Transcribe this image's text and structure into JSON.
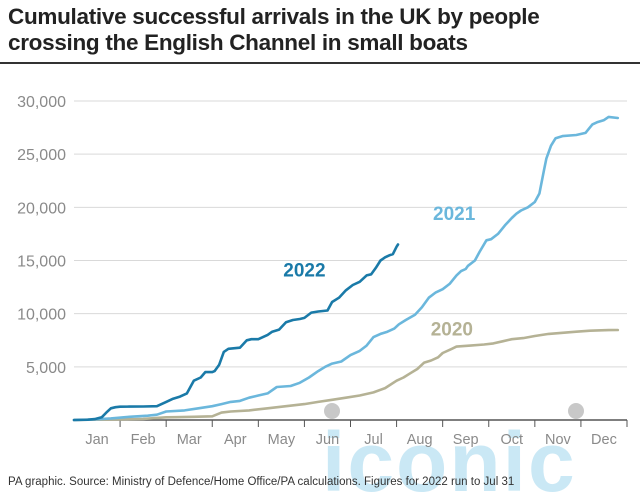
{
  "title": "Cumulative successful arrivals in the UK by people crossing the English Channel in small boats",
  "source": "PA graphic. Source: Ministry of Defence/Home Office/PA calculations. Figures for 2022 run to Jul 31",
  "watermark": "iconic",
  "colors": {
    "s2022": "#1a7aa8",
    "s2021": "#6bb7dc",
    "s2020": "#b5b295",
    "grid": "#d9d9d9",
    "axis": "#555555",
    "tick": "#8a8a8a",
    "watermark": "#9fd6ee"
  },
  "chart_data": {
    "type": "line",
    "title": "Cumulative successful arrivals in the UK by people crossing the English Channel in small boats",
    "xlabel": "",
    "ylabel": "",
    "xlim": [
      0,
      12
    ],
    "ylim": [
      0,
      30000
    ],
    "yticks": [
      0,
      5000,
      10000,
      15000,
      20000,
      25000,
      30000
    ],
    "ytick_labels": [
      "",
      "5,000",
      "10,000",
      "15,000",
      "20,000",
      "25,000",
      "30,000"
    ],
    "xtick_labels": [
      "Jan",
      "Feb",
      "Mar",
      "Apr",
      "May",
      "Jun",
      "Jul",
      "Aug",
      "Sep",
      "Oct",
      "Nov",
      "Dec"
    ],
    "x_units": "months from Jan 1",
    "grid": true,
    "series": [
      {
        "name": "2022",
        "color": "#1a7aa8",
        "label_at": [
          5.0,
          13500
        ],
        "points": [
          [
            0,
            0
          ],
          [
            0.3,
            30
          ],
          [
            0.45,
            80
          ],
          [
            0.6,
            250
          ],
          [
            0.7,
            700
          ],
          [
            0.8,
            1100
          ],
          [
            0.9,
            1200
          ],
          [
            1.0,
            1250
          ],
          [
            1.2,
            1260
          ],
          [
            1.5,
            1270
          ],
          [
            1.8,
            1300
          ],
          [
            2.0,
            1700
          ],
          [
            2.15,
            2000
          ],
          [
            2.3,
            2200
          ],
          [
            2.45,
            2500
          ],
          [
            2.6,
            3700
          ],
          [
            2.75,
            4000
          ],
          [
            2.85,
            4500
          ],
          [
            3.0,
            4500
          ],
          [
            3.05,
            4600
          ],
          [
            3.15,
            5200
          ],
          [
            3.25,
            6400
          ],
          [
            3.35,
            6700
          ],
          [
            3.6,
            6800
          ],
          [
            3.75,
            7500
          ],
          [
            3.85,
            7600
          ],
          [
            4.0,
            7600
          ],
          [
            4.2,
            8000
          ],
          [
            4.3,
            8300
          ],
          [
            4.45,
            8500
          ],
          [
            4.6,
            9200
          ],
          [
            4.75,
            9400
          ],
          [
            4.9,
            9500
          ],
          [
            5.0,
            9600
          ],
          [
            5.15,
            10100
          ],
          [
            5.3,
            10200
          ],
          [
            5.5,
            10300
          ],
          [
            5.6,
            11100
          ],
          [
            5.75,
            11500
          ],
          [
            5.9,
            12200
          ],
          [
            6.05,
            12700
          ],
          [
            6.2,
            13000
          ],
          [
            6.35,
            13600
          ],
          [
            6.45,
            13700
          ],
          [
            6.55,
            14300
          ],
          [
            6.65,
            15000
          ],
          [
            6.75,
            15300
          ],
          [
            6.85,
            15500
          ],
          [
            6.92,
            15600
          ],
          [
            7.0,
            16300
          ],
          [
            7.03,
            16500
          ]
        ]
      },
      {
        "name": "2021",
        "color": "#6bb7dc",
        "label_at": [
          8.25,
          18800
        ],
        "points": [
          [
            0,
            0
          ],
          [
            0.4,
            50
          ],
          [
            0.8,
            150
          ],
          [
            1.2,
            300
          ],
          [
            1.6,
            400
          ],
          [
            1.8,
            500
          ],
          [
            2.0,
            800
          ],
          [
            2.4,
            900
          ],
          [
            2.7,
            1100
          ],
          [
            3.0,
            1300
          ],
          [
            3.2,
            1500
          ],
          [
            3.4,
            1700
          ],
          [
            3.6,
            1800
          ],
          [
            3.8,
            2100
          ],
          [
            4.0,
            2300
          ],
          [
            4.2,
            2500
          ],
          [
            4.4,
            3100
          ],
          [
            4.7,
            3200
          ],
          [
            4.9,
            3500
          ],
          [
            5.1,
            4000
          ],
          [
            5.3,
            4600
          ],
          [
            5.45,
            5000
          ],
          [
            5.6,
            5300
          ],
          [
            5.8,
            5500
          ],
          [
            6.0,
            6100
          ],
          [
            6.2,
            6500
          ],
          [
            6.35,
            7000
          ],
          [
            6.5,
            7800
          ],
          [
            6.65,
            8100
          ],
          [
            6.8,
            8300
          ],
          [
            6.95,
            8600
          ],
          [
            7.05,
            9000
          ],
          [
            7.2,
            9400
          ],
          [
            7.4,
            9900
          ],
          [
            7.55,
            10600
          ],
          [
            7.7,
            11500
          ],
          [
            7.85,
            12000
          ],
          [
            8.0,
            12300
          ],
          [
            8.15,
            12800
          ],
          [
            8.3,
            13600
          ],
          [
            8.4,
            14000
          ],
          [
            8.5,
            14200
          ],
          [
            8.55,
            14500
          ],
          [
            8.7,
            15000
          ],
          [
            8.8,
            15800
          ],
          [
            8.95,
            16900
          ],
          [
            9.05,
            17000
          ],
          [
            9.2,
            17500
          ],
          [
            9.35,
            18300
          ],
          [
            9.5,
            19000
          ],
          [
            9.6,
            19400
          ],
          [
            9.7,
            19700
          ],
          [
            9.85,
            20000
          ],
          [
            10.0,
            20500
          ],
          [
            10.1,
            21300
          ],
          [
            10.2,
            23500
          ],
          [
            10.25,
            24600
          ],
          [
            10.35,
            25800
          ],
          [
            10.45,
            26500
          ],
          [
            10.6,
            26700
          ],
          [
            10.9,
            26800
          ],
          [
            11.1,
            27000
          ],
          [
            11.25,
            27800
          ],
          [
            11.35,
            28000
          ],
          [
            11.5,
            28200
          ],
          [
            11.6,
            28500
          ],
          [
            11.8,
            28400
          ]
        ]
      },
      {
        "name": "2020",
        "color": "#b5b295",
        "label_at": [
          8.2,
          7950
        ],
        "points": [
          [
            0,
            0
          ],
          [
            0.5,
            40
          ],
          [
            1.0,
            60
          ],
          [
            1.5,
            100
          ],
          [
            1.8,
            200
          ],
          [
            2.0,
            250
          ],
          [
            2.2,
            260
          ],
          [
            2.6,
            300
          ],
          [
            3.0,
            350
          ],
          [
            3.2,
            700
          ],
          [
            3.4,
            800
          ],
          [
            3.8,
            900
          ],
          [
            4.2,
            1100
          ],
          [
            4.6,
            1300
          ],
          [
            5.0,
            1500
          ],
          [
            5.3,
            1700
          ],
          [
            5.6,
            1900
          ],
          [
            5.9,
            2100
          ],
          [
            6.2,
            2300
          ],
          [
            6.5,
            2600
          ],
          [
            6.75,
            3000
          ],
          [
            7.0,
            3700
          ],
          [
            7.15,
            4000
          ],
          [
            7.3,
            4400
          ],
          [
            7.45,
            4800
          ],
          [
            7.6,
            5400
          ],
          [
            7.75,
            5600
          ],
          [
            7.9,
            5900
          ],
          [
            8.0,
            6300
          ],
          [
            8.2,
            6700
          ],
          [
            8.3,
            6900
          ],
          [
            8.6,
            7000
          ],
          [
            8.9,
            7100
          ],
          [
            9.1,
            7200
          ],
          [
            9.3,
            7400
          ],
          [
            9.5,
            7600
          ],
          [
            9.75,
            7700
          ],
          [
            10.0,
            7900
          ],
          [
            10.3,
            8100
          ],
          [
            10.6,
            8200
          ],
          [
            10.9,
            8300
          ],
          [
            11.2,
            8400
          ],
          [
            11.6,
            8450
          ],
          [
            11.8,
            8460
          ]
        ]
      }
    ]
  }
}
